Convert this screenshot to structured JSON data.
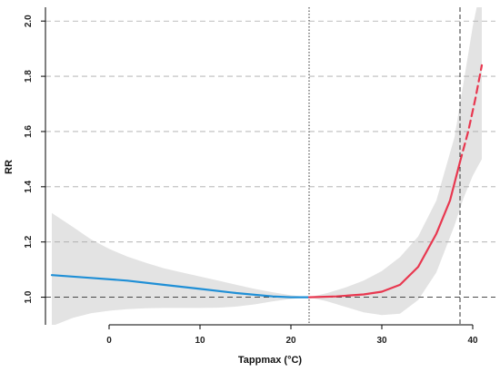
{
  "chart_data": {
    "type": "line",
    "title": "",
    "xlabel": "Tappmax (°C)",
    "ylabel": "RR",
    "xlim": [
      -7,
      42.5
    ],
    "ylim": [
      0.9,
      2.05
    ],
    "xticks": [
      0,
      10,
      20,
      30,
      40
    ],
    "yticks": [
      1.0,
      1.2,
      1.4,
      1.6,
      1.8,
      2.0
    ],
    "ytick_labels": [
      "1.0",
      "1.2",
      "1.4",
      "1.6",
      "1.8",
      "2.0"
    ],
    "grid": "horizontal dashed",
    "reference_line": {
      "y": 1.0,
      "style": "dashed"
    },
    "vertical_lines": [
      {
        "x": 22,
        "style": "dotted"
      },
      {
        "x": 38.6,
        "style": "dashed"
      }
    ],
    "colors": {
      "cold": "#1f8fd6",
      "heat": "#e8374f",
      "ci": "#e3e3e3",
      "grid": "#aaaaaa"
    },
    "series": [
      {
        "style": "solid",
        "color": "cold",
        "x": [
          -6.3,
          -2,
          2,
          6,
          10,
          14,
          18,
          20,
          22
        ],
        "y": [
          1.08,
          1.07,
          1.06,
          1.045,
          1.03,
          1.015,
          1.003,
          1.0,
          1.0
        ]
      },
      {
        "style": "solid",
        "color": "heat",
        "x": [
          22,
          25,
          28,
          30,
          32,
          34,
          36,
          37.5,
          38.6
        ],
        "y": [
          1.0,
          1.003,
          1.01,
          1.02,
          1.045,
          1.11,
          1.23,
          1.35,
          1.49
        ]
      },
      {
        "style": "dashed",
        "color": "heat",
        "x": [
          38.6,
          39.5,
          40.3,
          41.0
        ],
        "y": [
          1.49,
          1.6,
          1.72,
          1.84
        ]
      }
    ],
    "confidence_band": {
      "x": [
        -6.3,
        -4,
        -2,
        0,
        2,
        4,
        6,
        8,
        10,
        12,
        14,
        16,
        18,
        20,
        22,
        24,
        26,
        28,
        30,
        32,
        34,
        36,
        38,
        39,
        40,
        40.5,
        41.0
      ],
      "lower": [
        0.895,
        0.925,
        0.942,
        0.951,
        0.957,
        0.96,
        0.961,
        0.961,
        0.961,
        0.962,
        0.966,
        0.974,
        0.985,
        0.994,
        1.0,
        0.985,
        0.965,
        0.945,
        0.935,
        0.94,
        0.99,
        1.09,
        1.26,
        1.36,
        1.44,
        1.47,
        1.5
      ],
      "upper": [
        1.305,
        1.255,
        1.21,
        1.175,
        1.147,
        1.125,
        1.105,
        1.09,
        1.075,
        1.06,
        1.045,
        1.03,
        1.018,
        1.007,
        1.0,
        1.015,
        1.035,
        1.06,
        1.095,
        1.145,
        1.22,
        1.35,
        1.58,
        1.78,
        1.98,
        2.06,
        2.08
      ]
    }
  }
}
